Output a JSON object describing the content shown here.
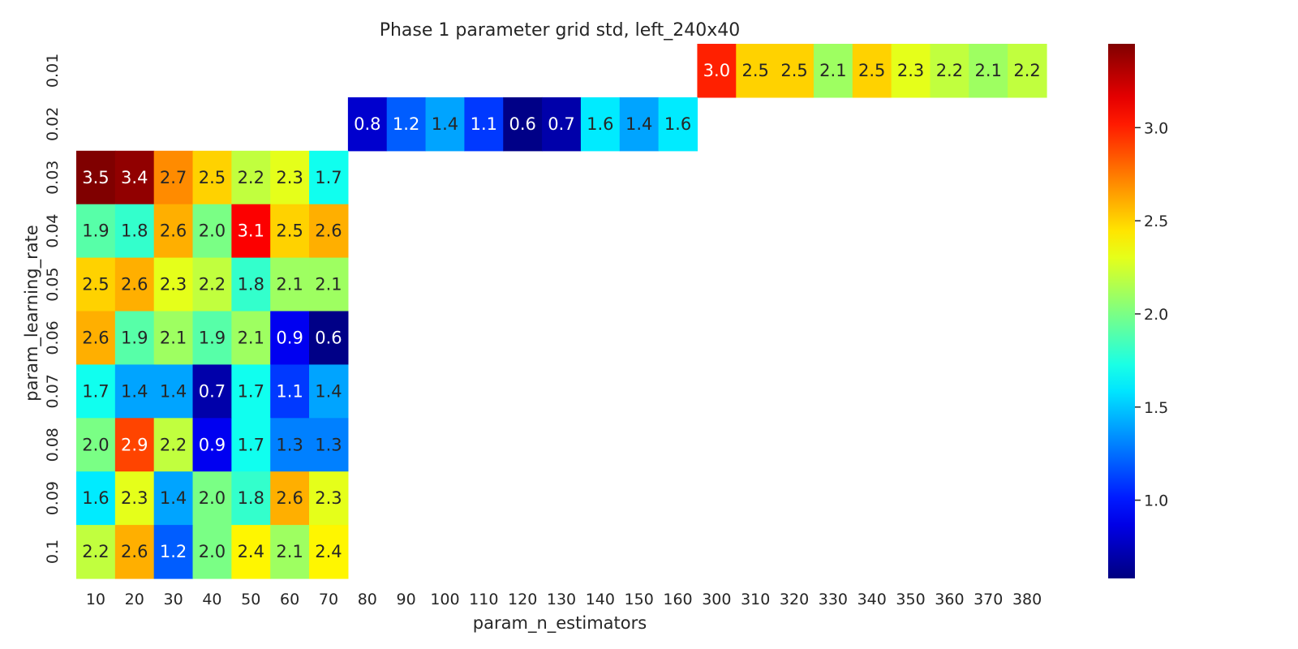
{
  "chart_data": {
    "type": "heatmap",
    "title": "Phase 1 parameter grid std, left_240x40",
    "xlabel": "param_n_estimators",
    "ylabel": "param_learning_rate",
    "x_categories": [
      "10",
      "20",
      "30",
      "40",
      "50",
      "60",
      "70",
      "80",
      "90",
      "100",
      "110",
      "120",
      "130",
      "140",
      "150",
      "160",
      "300",
      "310",
      "320",
      "330",
      "340",
      "350",
      "360",
      "370",
      "380"
    ],
    "y_categories": [
      "0.01",
      "0.02",
      "0.03",
      "0.04",
      "0.05",
      "0.06",
      "0.07",
      "0.08",
      "0.09",
      "0.1"
    ],
    "values": [
      [
        null,
        null,
        null,
        null,
        null,
        null,
        null,
        null,
        null,
        null,
        null,
        null,
        null,
        null,
        null,
        null,
        3.0,
        2.5,
        2.5,
        2.1,
        2.5,
        2.3,
        2.2,
        2.1,
        2.2
      ],
      [
        null,
        null,
        null,
        null,
        null,
        null,
        null,
        0.8,
        1.2,
        1.4,
        1.1,
        0.6,
        0.7,
        1.6,
        1.4,
        1.6,
        null,
        null,
        null,
        null,
        null,
        null,
        null,
        null,
        null
      ],
      [
        3.5,
        3.4,
        2.7,
        2.5,
        2.2,
        2.3,
        1.7,
        null,
        null,
        null,
        null,
        null,
        null,
        null,
        null,
        null,
        null,
        null,
        null,
        null,
        null,
        null,
        null,
        null,
        null
      ],
      [
        1.9,
        1.8,
        2.6,
        2.0,
        3.1,
        2.5,
        2.6,
        null,
        null,
        null,
        null,
        null,
        null,
        null,
        null,
        null,
        null,
        null,
        null,
        null,
        null,
        null,
        null,
        null,
        null
      ],
      [
        2.5,
        2.6,
        2.3,
        2.2,
        1.8,
        2.1,
        2.1,
        null,
        null,
        null,
        null,
        null,
        null,
        null,
        null,
        null,
        null,
        null,
        null,
        null,
        null,
        null,
        null,
        null,
        null
      ],
      [
        2.6,
        1.9,
        2.1,
        1.9,
        2.1,
        0.9,
        0.6,
        null,
        null,
        null,
        null,
        null,
        null,
        null,
        null,
        null,
        null,
        null,
        null,
        null,
        null,
        null,
        null,
        null,
        null
      ],
      [
        1.7,
        1.4,
        1.4,
        0.7,
        1.7,
        1.1,
        1.4,
        null,
        null,
        null,
        null,
        null,
        null,
        null,
        null,
        null,
        null,
        null,
        null,
        null,
        null,
        null,
        null,
        null,
        null
      ],
      [
        2.0,
        2.9,
        2.2,
        0.9,
        1.7,
        1.3,
        1.3,
        null,
        null,
        null,
        null,
        null,
        null,
        null,
        null,
        null,
        null,
        null,
        null,
        null,
        null,
        null,
        null,
        null,
        null
      ],
      [
        1.6,
        2.3,
        1.4,
        2.0,
        1.8,
        2.6,
        2.3,
        null,
        null,
        null,
        null,
        null,
        null,
        null,
        null,
        null,
        null,
        null,
        null,
        null,
        null,
        null,
        null,
        null,
        null
      ],
      [
        2.2,
        2.6,
        1.2,
        2.0,
        2.4,
        2.1,
        2.4,
        null,
        null,
        null,
        null,
        null,
        null,
        null,
        null,
        null,
        null,
        null,
        null,
        null,
        null,
        null,
        null,
        null,
        null
      ]
    ],
    "colormap": "jet",
    "vmin": 0.58,
    "vmax": 3.45,
    "colorbar_ticks": [
      "1.0",
      "1.5",
      "2.0",
      "2.5",
      "3.0"
    ],
    "annotations": true
  }
}
